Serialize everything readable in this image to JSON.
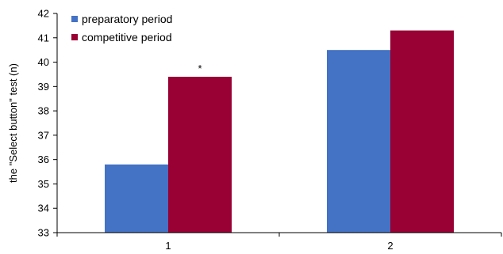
{
  "chart_data": {
    "type": "bar",
    "categories": [
      "1",
      "2"
    ],
    "series": [
      {
        "name": "preparatory period",
        "color": "#4472C4",
        "values": [
          35.8,
          40.5
        ]
      },
      {
        "name": "competitive period",
        "color": "#990033",
        "values": [
          39.4,
          41.3
        ]
      }
    ],
    "ylabel": "the \"Select button\" test (n)",
    "xlabel": "",
    "title": "",
    "ylim": [
      33,
      42
    ],
    "yticks": [
      "33",
      "34",
      "35",
      "36",
      "37",
      "38",
      "39",
      "40",
      "41",
      "42"
    ],
    "grid": false,
    "legend_position": "top-left",
    "annotations": [
      {
        "text": "*",
        "category": "1",
        "series": "competitive period"
      }
    ]
  }
}
